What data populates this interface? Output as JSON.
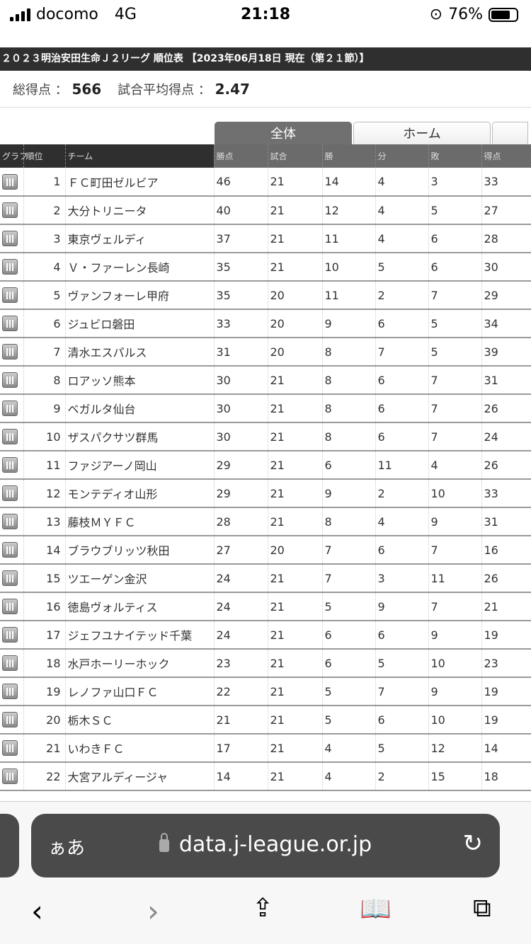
{
  "status": {
    "carrier": "docomo",
    "network": "4G",
    "time": "21:18",
    "battery": "76%",
    "battery_level": 0.76
  },
  "page": {
    "title": "２０２３明治安田生命Ｊ２リーグ 順位表 【2023年06月18日 現在（第２１節）】",
    "total_label": "総得点 ：",
    "total": "566",
    "avg_label": "試合平均得点 ：",
    "avg": "2.47"
  },
  "tabs": [
    {
      "label": "全体",
      "active": true
    },
    {
      "label": "ホーム",
      "active": false
    },
    {
      "label": "",
      "active": false
    }
  ],
  "columns": [
    "グラフ",
    "順位",
    "チーム",
    "勝点",
    "試合",
    "勝",
    "分",
    "敗",
    "得点"
  ],
  "rows": [
    [
      "1",
      "ＦＣ町田ゼルビア",
      "46",
      "21",
      "14",
      "4",
      "3",
      "33"
    ],
    [
      "2",
      "大分トリニータ",
      "40",
      "21",
      "12",
      "4",
      "5",
      "27"
    ],
    [
      "3",
      "東京ヴェルディ",
      "37",
      "21",
      "11",
      "4",
      "6",
      "28"
    ],
    [
      "4",
      "Ｖ・ファーレン長崎",
      "35",
      "21",
      "10",
      "5",
      "6",
      "30"
    ],
    [
      "5",
      "ヴァンフォーレ甲府",
      "35",
      "20",
      "11",
      "2",
      "7",
      "29"
    ],
    [
      "6",
      "ジュビロ磐田",
      "33",
      "20",
      "9",
      "6",
      "5",
      "34"
    ],
    [
      "7",
      "清水エスパルス",
      "31",
      "20",
      "8",
      "7",
      "5",
      "39"
    ],
    [
      "8",
      "ロアッソ熊本",
      "30",
      "21",
      "8",
      "6",
      "7",
      "31"
    ],
    [
      "9",
      "ベガルタ仙台",
      "30",
      "21",
      "8",
      "6",
      "7",
      "26"
    ],
    [
      "10",
      "ザスパクサツ群馬",
      "30",
      "21",
      "8",
      "6",
      "7",
      "24"
    ],
    [
      "11",
      "ファジアーノ岡山",
      "29",
      "21",
      "6",
      "11",
      "4",
      "26"
    ],
    [
      "12",
      "モンテディオ山形",
      "29",
      "21",
      "9",
      "2",
      "10",
      "33"
    ],
    [
      "13",
      "藤枝ＭＹＦＣ",
      "28",
      "21",
      "8",
      "4",
      "9",
      "31"
    ],
    [
      "14",
      "ブラウブリッツ秋田",
      "27",
      "20",
      "7",
      "6",
      "7",
      "16"
    ],
    [
      "15",
      "ツエーゲン金沢",
      "24",
      "21",
      "7",
      "3",
      "11",
      "26"
    ],
    [
      "16",
      "徳島ヴォルティス",
      "24",
      "21",
      "5",
      "9",
      "7",
      "21"
    ],
    [
      "17",
      "ジェフユナイテッド千葉",
      "24",
      "21",
      "6",
      "6",
      "9",
      "19"
    ],
    [
      "18",
      "水戸ホーリーホック",
      "23",
      "21",
      "6",
      "5",
      "10",
      "23"
    ],
    [
      "19",
      "レノファ山口ＦＣ",
      "22",
      "21",
      "5",
      "7",
      "9",
      "19"
    ],
    [
      "20",
      "栃木ＳＣ",
      "21",
      "21",
      "5",
      "6",
      "10",
      "19"
    ],
    [
      "21",
      "いわきＦＣ",
      "17",
      "21",
      "4",
      "5",
      "12",
      "14"
    ],
    [
      "22",
      "大宮アルディージャ",
      "14",
      "21",
      "4",
      "2",
      "15",
      "18"
    ]
  ],
  "browser": {
    "aa": "ぁあ",
    "url": "data.j-league.or.jp",
    "back": "‹",
    "forward": "›"
  }
}
